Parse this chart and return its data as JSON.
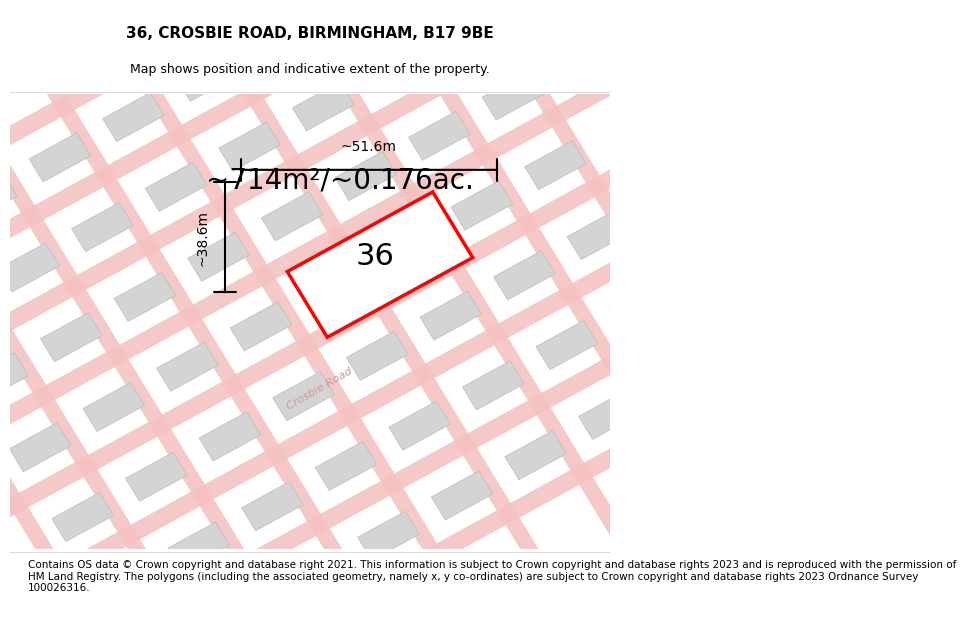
{
  "title": "36, CROSBIE ROAD, BIRMINGHAM, B17 9BE",
  "subtitle": "Map shows position and indicative extent of the property.",
  "area_text": "~714m²/~0.176ac.",
  "property_number": "36",
  "dim_width": "~51.6m",
  "dim_height": "~38.6m",
  "road_label": "Crosbie Road",
  "footer": "Contains OS data © Crown copyright and database right 2021. This information is subject to Crown copyright and database rights 2023 and is reproduced with the permission of\nHM Land Registry. The polygons (including the associated geometry, namely x, y co-ordinates) are subject to Crown copyright and database rights 2023 Ordnance Survey\n100026316.",
  "bg_color": "#ffffff",
  "map_bg": "#f2f2f2",
  "plot_color": "#ff0000",
  "plot_fill": "#ffffff",
  "building_color": "#d4d4d4",
  "road_color": "#f5c0c0",
  "title_fontsize": 11,
  "subtitle_fontsize": 9,
  "area_fontsize": 20,
  "number_fontsize": 22,
  "footer_fontsize": 7.5
}
